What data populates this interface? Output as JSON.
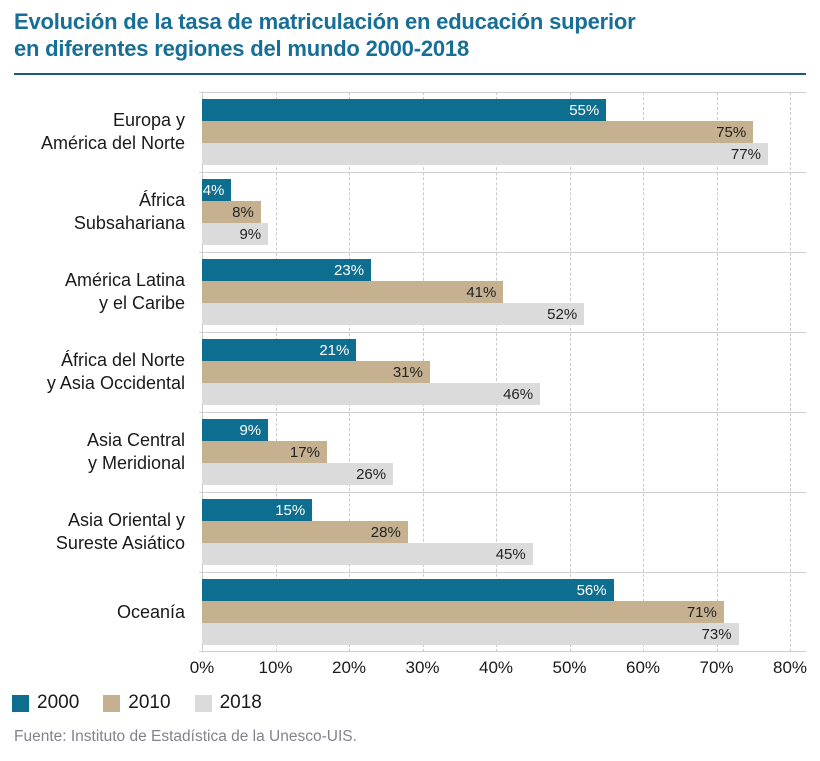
{
  "title": {
    "line1": "Evolución de la tasa de matriculación en educación superior",
    "line2": "en diferentes regiones del mundo 2000-2018"
  },
  "source": "Fuente: Instituto de Estadística de la Unesco-UIS.",
  "colors": {
    "title": "#176E96",
    "title_rule": "#1A5A7D",
    "series_2000": "#0D6E8F",
    "series_2010": "#C5B190",
    "series_2018": "#DBDBDB",
    "value_light": "#FFFFFF",
    "value_dark": "#222222",
    "grid": "#C9C9C9",
    "source_text": "#82828C"
  },
  "legend": [
    {
      "label": "2000",
      "color": "#0D6E8F"
    },
    {
      "label": "2010",
      "color": "#C5B190"
    },
    {
      "label": "2018",
      "color": "#DBDBDB"
    }
  ],
  "chart_data": {
    "type": "bar",
    "orientation": "horizontal",
    "title": "Evolución de la tasa de matriculación en educación superior en diferentes regiones del mundo 2000-2018",
    "categories": [
      "Europa y\nAmérica del Norte",
      "África\nSubsahariana",
      "América Latina\ny el Caribe",
      "África del Norte\ny Asia Occidental",
      "Asia Central\ny Meridional",
      "Asia Oriental y\nSureste Asiático",
      "Oceanía"
    ],
    "series": [
      {
        "name": "2000",
        "values": [
          55,
          4,
          23,
          21,
          9,
          15,
          56
        ]
      },
      {
        "name": "2010",
        "values": [
          75,
          8,
          41,
          31,
          17,
          28,
          71
        ]
      },
      {
        "name": "2018",
        "values": [
          77,
          9,
          52,
          46,
          26,
          45,
          73
        ]
      }
    ],
    "value_suffix": "%",
    "xlabel": "",
    "ylabel": "",
    "xlim": [
      0,
      80
    ],
    "x_ticks": [
      "0%",
      "10%",
      "20%",
      "30%",
      "40%",
      "50%",
      "60%",
      "70%",
      "80%"
    ],
    "grid": "vertical-dashed",
    "legend_position": "bottom"
  }
}
